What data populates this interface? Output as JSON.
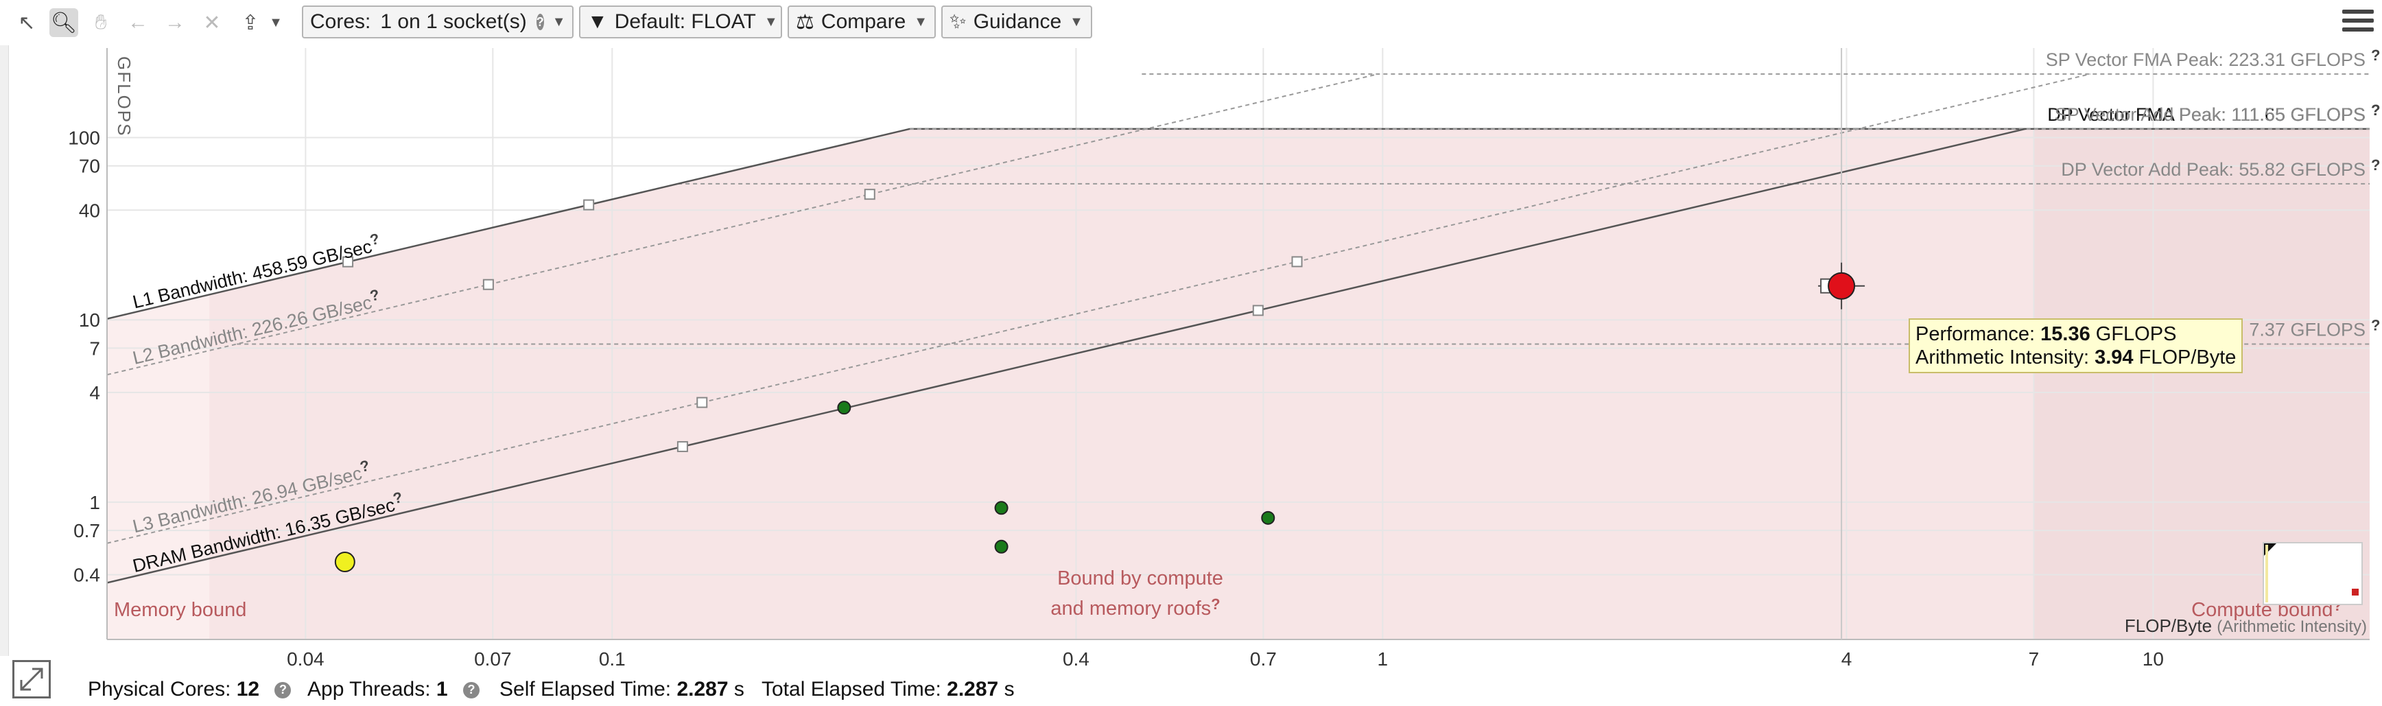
{
  "toolbar": {
    "cores_label": "Cores:",
    "cores_value": "1 on 1 socket(s)",
    "filter_label": "Default: FLOAT",
    "compare_label": "Compare",
    "guidance_label": "Guidance",
    "icons": [
      "select-arrow-icon",
      "zoom-icon",
      "pan-hand-icon",
      "undo-icon",
      "redo-icon",
      "clear-icon",
      "export-icon",
      "menu-icon"
    ]
  },
  "chart_data": {
    "type": "scatter",
    "scale": "log-log",
    "ylabel": "GFLOPS",
    "xlabel": "FLOP/Byte",
    "xlabel_note": "(Arithmetic Intensity)",
    "xlim": [
      0.0221,
      19.1
    ],
    "ylim": [
      0.1766,
      310
    ],
    "x_ticks": [
      0.04,
      0.07,
      0.1,
      0.4,
      0.7,
      1,
      4,
      7,
      10
    ],
    "y_ticks": [
      0.4,
      0.7,
      1,
      4,
      7,
      10,
      40,
      70,
      100
    ],
    "zone_labels": {
      "memory": "Memory bound",
      "mixed_1": "Bound by compute",
      "mixed_2": "and memory roofs",
      "compute": "Compute bound"
    },
    "bandwidth_roofs": [
      {
        "label": "L1 Bandwidth: 458.59 GB/sec",
        "gbps": 458.59,
        "primary": true
      },
      {
        "label": "L2 Bandwidth: 226.26 GB/sec",
        "gbps": 226.26,
        "primary": false
      },
      {
        "label": "L3 Bandwidth: 26.94 GB/sec",
        "gbps": 26.94,
        "primary": false
      },
      {
        "label": "DRAM Bandwidth: 16.35 GB/sec",
        "gbps": 16.35,
        "primary": true
      }
    ],
    "compute_roofs": [
      {
        "label": "SP Vector FMA Peak: 223.31 GFLOPS",
        "gflops": 223.31,
        "primary": false
      },
      {
        "label": "DP Vector FMA Peak: 111.65 GFLOPS",
        "gflops": 111.65,
        "primary": true
      },
      {
        "label": "SP Vector Add Peak: 111.55 GFLOPS",
        "gflops": 111.55,
        "primary": false
      },
      {
        "label": "DP Vector Add Peak: 55.82 GFLOPS",
        "gflops": 55.82,
        "primary": false
      },
      {
        "label": "7.37 GFLOPS",
        "gflops": 7.37,
        "primary": false
      }
    ],
    "points": [
      {
        "x": 3.94,
        "y": 15.36,
        "color": "#e0101a",
        "size": "large",
        "selected": true
      },
      {
        "x": 0.2,
        "y": 3.3,
        "color": "#1a7a1a",
        "size": "small"
      },
      {
        "x": 0.32,
        "y": 0.93,
        "color": "#1a7a1a",
        "size": "small"
      },
      {
        "x": 0.32,
        "y": 0.57,
        "color": "#1a7a1a",
        "size": "small"
      },
      {
        "x": 0.71,
        "y": 0.82,
        "color": "#1a7a1a",
        "size": "small"
      },
      {
        "x": 0.045,
        "y": 0.47,
        "color": "#f0f020",
        "size": "medium"
      }
    ],
    "tooltip": {
      "perf_label": "Performance:",
      "perf_value": "15.36",
      "perf_unit": "GFLOPS",
      "ai_label": "Arithmetic Intensity:",
      "ai_value": "3.94",
      "ai_unit": "FLOP/Byte"
    }
  },
  "status": {
    "physical_cores_label": "Physical Cores:",
    "physical_cores_value": "12",
    "app_threads_label": "App Threads:",
    "app_threads_value": "1",
    "self_elapsed_label": "Self Elapsed Time:",
    "self_elapsed_value": "2.287",
    "total_elapsed_label": "Total Elapsed Time:",
    "total_elapsed_value": "2.287",
    "time_unit": "s"
  },
  "colors": {
    "memory_zone": "#fbeeee",
    "mixed_zone": "#f7e5e6",
    "compute_zone": "#f1dcdd",
    "zone_text": "#b85a5e"
  }
}
